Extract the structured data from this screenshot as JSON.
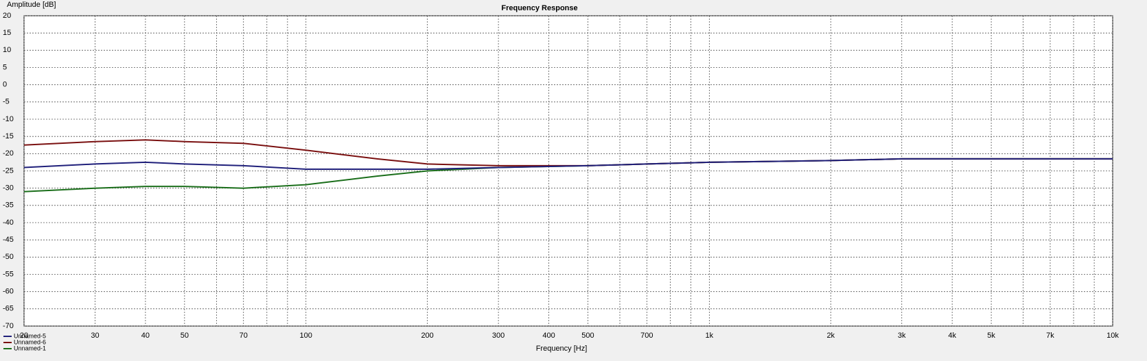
{
  "chart_data": {
    "type": "line",
    "title": "Frequency Response",
    "xlabel": "Frequency [Hz]",
    "ylabel": "Amplitude [dB]",
    "x": [
      20,
      30,
      40,
      50,
      70,
      100,
      150,
      200,
      300,
      500,
      700,
      1000,
      2000,
      3000,
      5000,
      10000
    ],
    "series": [
      {
        "name": "Unnamed-5",
        "color": "#1f1f7a",
        "values": [
          -24,
          -23,
          -22.5,
          -23,
          -23.5,
          -24.5,
          -24.5,
          -24.5,
          -24,
          -23.5,
          -23,
          -22.5,
          -22,
          -21.5,
          -21.5,
          -21.5
        ]
      },
      {
        "name": "Unnamed-6",
        "color": "#7a1010",
        "values": [
          -17.5,
          -16.5,
          -16,
          -16.5,
          -17,
          -19,
          -21.5,
          -23,
          -23.5,
          -23.5,
          -23,
          -22.5,
          -22,
          -21.5,
          -21.5,
          -21.5
        ]
      },
      {
        "name": "Unnamed-1",
        "color": "#1a6e1a",
        "values": [
          -31,
          -30,
          -29.5,
          -29.5,
          -30,
          -29,
          -26.5,
          -25,
          -24,
          -23.5,
          -23,
          -22.5,
          -22,
          -21.5,
          -21.5,
          -21.5
        ]
      }
    ],
    "xscale": "log",
    "xlim": [
      20,
      10000
    ],
    "xticks": [
      20,
      30,
      40,
      50,
      70,
      100,
      200,
      300,
      400,
      500,
      700,
      {
        "value": 1000,
        "label": "1k"
      },
      {
        "value": 2000,
        "label": "2k"
      },
      {
        "value": 3000,
        "label": "3k"
      },
      {
        "value": 4000,
        "label": "4k"
      },
      {
        "value": 5000,
        "label": "5k"
      },
      {
        "value": 7000,
        "label": "7k"
      },
      {
        "value": 10000,
        "label": "10k"
      }
    ],
    "xminor_ticks": [
      60,
      80,
      90,
      600,
      800,
      900,
      6000,
      8000,
      9000
    ],
    "ylim": [
      -70,
      20
    ],
    "yticks": [
      20,
      15,
      10,
      5,
      0,
      -5,
      -10,
      -15,
      -20,
      -25,
      -30,
      -35,
      -40,
      -45,
      -50,
      -55,
      -60,
      -65,
      -70
    ],
    "grid": true,
    "legend": "lower left"
  }
}
